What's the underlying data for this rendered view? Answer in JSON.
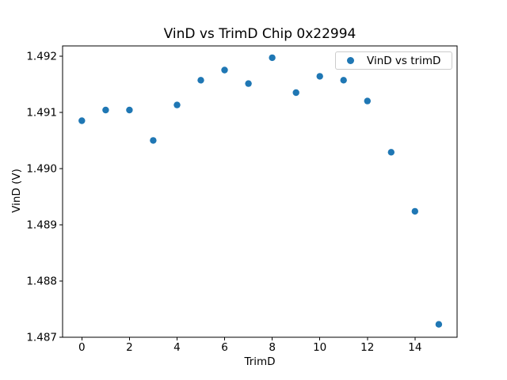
{
  "chart_data": {
    "type": "scatter",
    "title": "VinD vs TrimD Chip 0x22994",
    "xlabel": "TrimD",
    "ylabel": "VinD (V)",
    "grid": false,
    "legend_position": "upper right",
    "series": [
      {
        "name": "VinD vs trimD",
        "x": [
          0,
          1,
          2,
          3,
          4,
          5,
          6,
          7,
          8,
          9,
          10,
          11,
          12,
          13,
          14,
          15
        ],
        "y": [
          1.49085,
          1.49104,
          1.49104,
          1.4905,
          1.49113,
          1.49157,
          1.49175,
          1.49151,
          1.49197,
          1.49135,
          1.49164,
          1.49157,
          1.4912,
          1.49029,
          1.48924,
          1.48723
        ]
      }
    ],
    "xlim": [
      -0.81,
      15.77
    ],
    "ylim": [
      1.487,
      1.49218
    ],
    "xticks": [
      0,
      2,
      4,
      6,
      8,
      10,
      12,
      14
    ],
    "xtick_labels": [
      "0",
      "2",
      "4",
      "6",
      "8",
      "10",
      "12",
      "14"
    ],
    "yticks": [
      1.487,
      1.488,
      1.489,
      1.49,
      1.491,
      1.492
    ],
    "ytick_labels": [
      "1.487",
      "1.488",
      "1.489",
      "1.490",
      "1.491",
      "1.492"
    ],
    "marker": {
      "shape": "circle",
      "color": "#1f77b4",
      "radius_px": 4.2
    },
    "colors": {
      "background": "#ffffff",
      "spine": "#000000",
      "text": "#000000",
      "legend_border": "#cccccc"
    }
  }
}
